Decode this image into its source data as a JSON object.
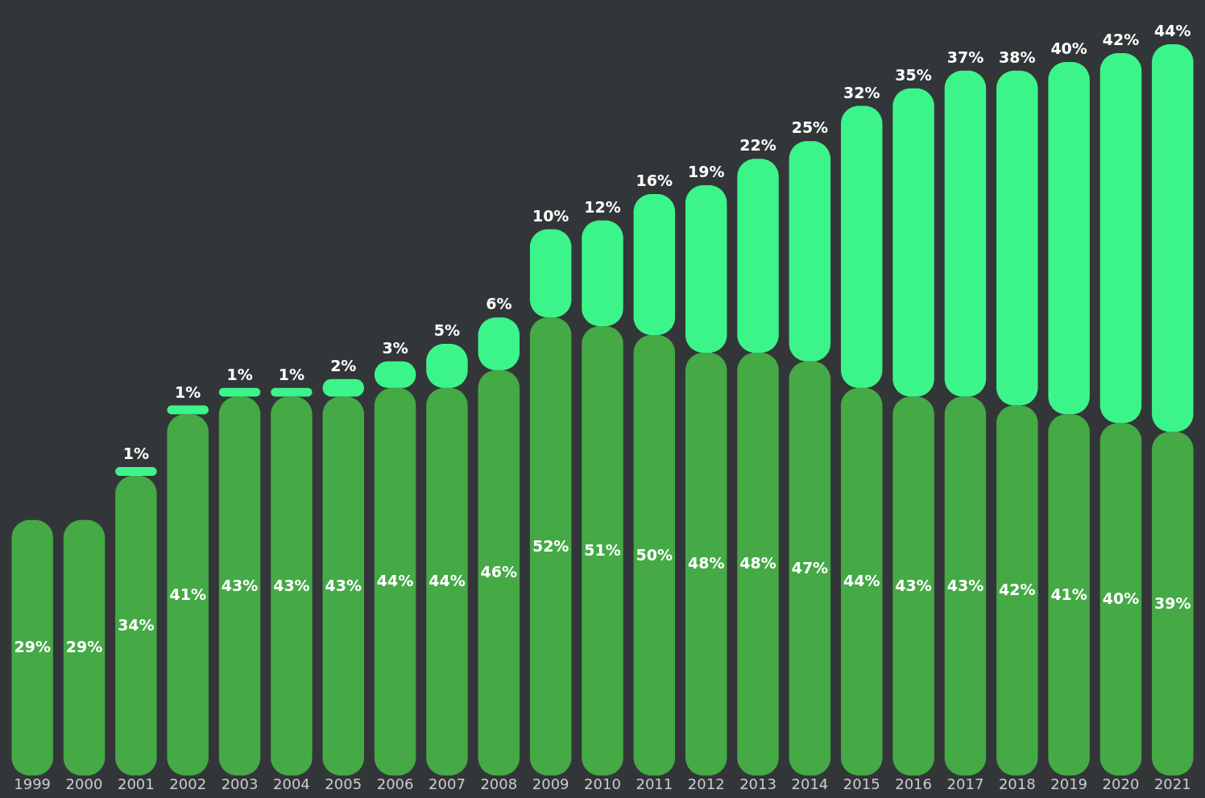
{
  "chart_data": {
    "type": "bar",
    "stacked": true,
    "grid": false,
    "categories": [
      "1999",
      "2000",
      "2001",
      "2002",
      "2003",
      "2004",
      "2005",
      "2006",
      "2007",
      "2008",
      "2009",
      "2010",
      "2011",
      "2012",
      "2013",
      "2014",
      "2015",
      "2016",
      "2017",
      "2018",
      "2019",
      "2020",
      "2021"
    ],
    "series": [
      {
        "color": "#45a946",
        "values": [
          29,
          29,
          34,
          41,
          43,
          43,
          43,
          44,
          44,
          46,
          52,
          51,
          50,
          48,
          48,
          47,
          44,
          43,
          43,
          42,
          41,
          40,
          39
        ],
        "value_labels": [
          "29%",
          "29%",
          "34%",
          "41%",
          "43%",
          "43%",
          "43%",
          "44%",
          "44%",
          "46%",
          "52%",
          "51%",
          "50%",
          "48%",
          "48%",
          "47%",
          "44%",
          "43%",
          "43%",
          "42%",
          "41%",
          "40%",
          "39%"
        ]
      },
      {
        "color": "#3cf58a",
        "values": [
          null,
          null,
          1,
          1,
          1,
          1,
          2,
          3,
          5,
          6,
          10,
          12,
          16,
          19,
          22,
          25,
          32,
          35,
          37,
          38,
          40,
          42,
          44
        ],
        "value_labels": [
          null,
          null,
          "1%",
          "1%",
          "1%",
          "1%",
          "2%",
          "3%",
          "5%",
          "6%",
          "10%",
          "12%",
          "16%",
          "19%",
          "22%",
          "25%",
          "32%",
          "35%",
          "37%",
          "38%",
          "40%",
          "42%",
          "44%"
        ]
      }
    ]
  }
}
